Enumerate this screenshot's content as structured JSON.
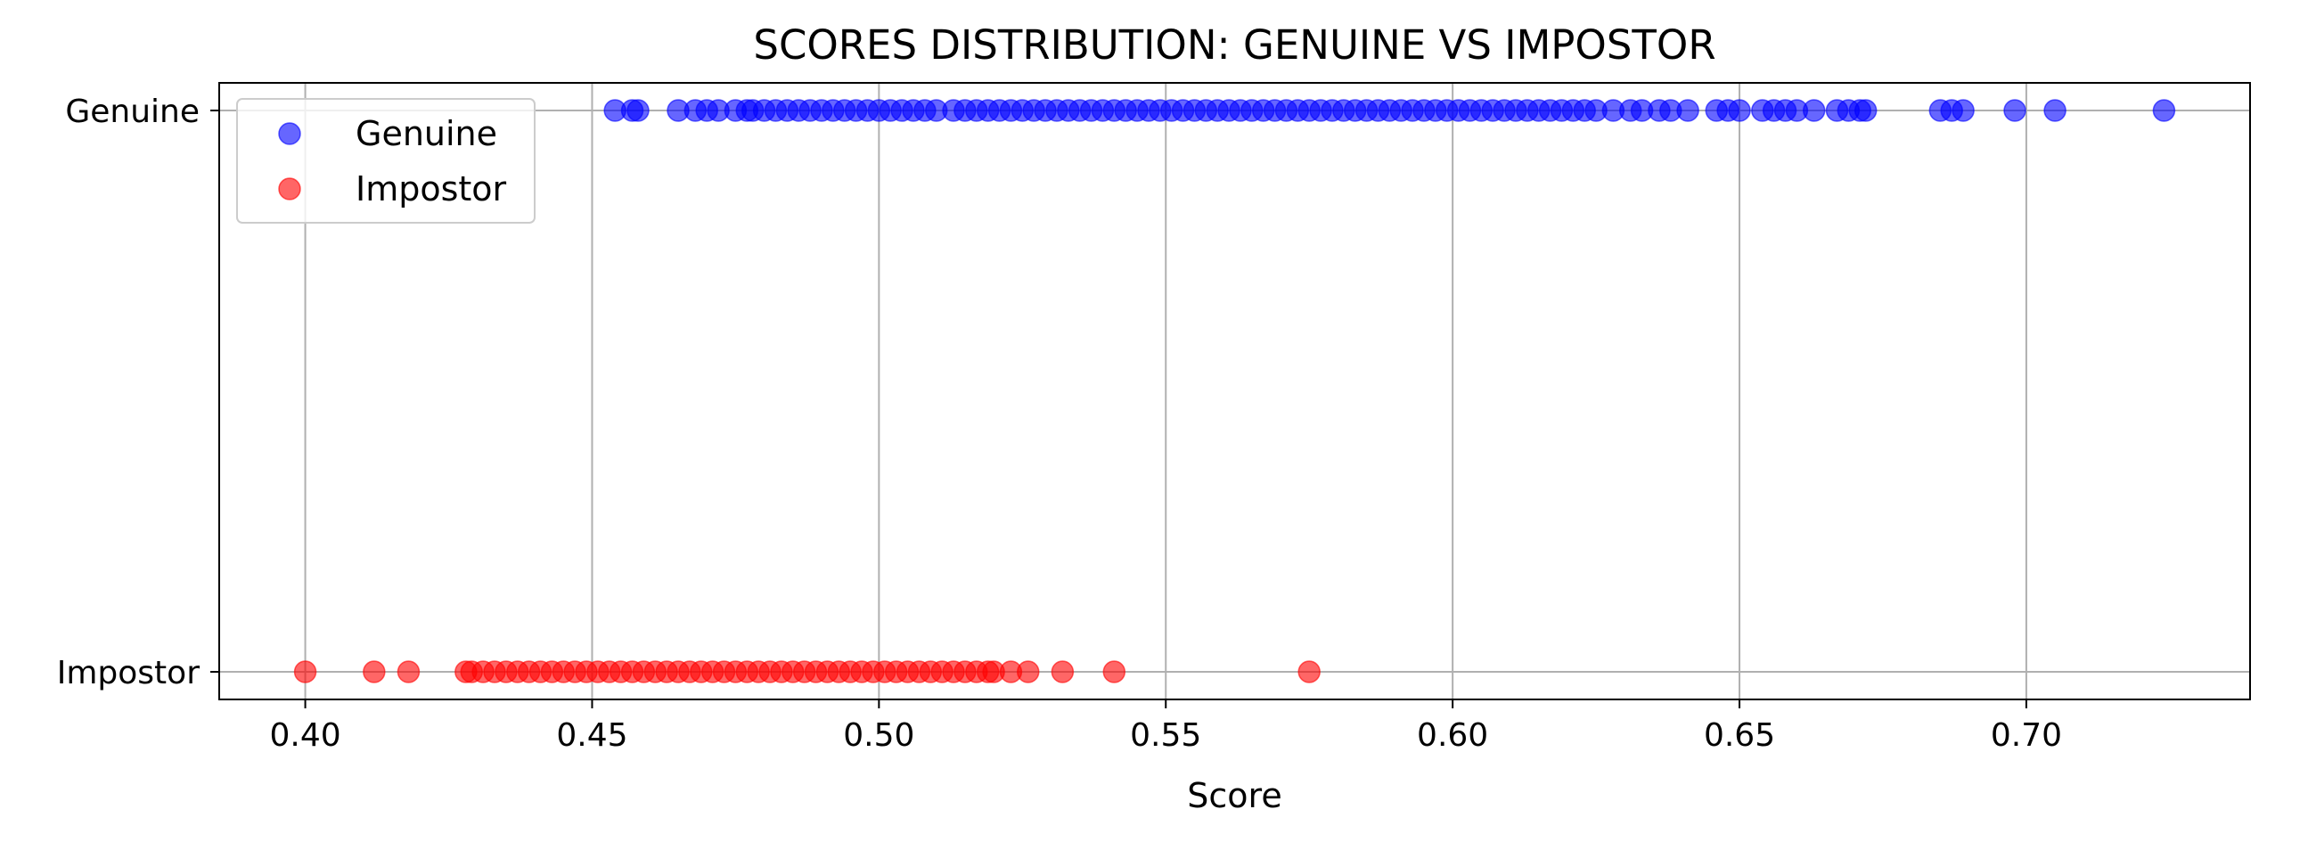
{
  "chart_data": {
    "type": "scatter",
    "title": "SCORES DISTRIBUTION: GENUINE VS IMPOSTOR",
    "xlabel": "Score",
    "ylabel": "",
    "xlim": [
      0.385,
      0.739
    ],
    "x_ticks": [
      "0.40",
      "0.45",
      "0.50",
      "0.55",
      "0.60",
      "0.65",
      "0.70"
    ],
    "y_categories": [
      "Impostor",
      "Genuine"
    ],
    "grid": true,
    "legend_position": "upper-left",
    "series": [
      {
        "name": "Genuine",
        "category": "Genuine",
        "color": "#0000ff",
        "x": [
          0.454,
          0.457,
          0.458,
          0.465,
          0.468,
          0.47,
          0.472,
          0.475,
          0.477,
          0.478,
          0.48,
          0.482,
          0.484,
          0.486,
          0.488,
          0.49,
          0.492,
          0.494,
          0.496,
          0.498,
          0.5,
          0.502,
          0.504,
          0.506,
          0.508,
          0.51,
          0.513,
          0.515,
          0.517,
          0.519,
          0.521,
          0.523,
          0.525,
          0.527,
          0.529,
          0.531,
          0.533,
          0.535,
          0.537,
          0.539,
          0.541,
          0.543,
          0.545,
          0.547,
          0.549,
          0.551,
          0.553,
          0.555,
          0.557,
          0.559,
          0.561,
          0.563,
          0.565,
          0.567,
          0.569,
          0.571,
          0.573,
          0.575,
          0.577,
          0.579,
          0.581,
          0.583,
          0.585,
          0.587,
          0.589,
          0.591,
          0.593,
          0.595,
          0.597,
          0.599,
          0.601,
          0.603,
          0.605,
          0.607,
          0.609,
          0.611,
          0.613,
          0.615,
          0.617,
          0.619,
          0.621,
          0.623,
          0.625,
          0.628,
          0.631,
          0.633,
          0.636,
          0.638,
          0.641,
          0.646,
          0.648,
          0.65,
          0.654,
          0.656,
          0.658,
          0.66,
          0.663,
          0.667,
          0.669,
          0.671,
          0.672,
          0.685,
          0.687,
          0.689,
          0.698,
          0.705,
          0.724
        ]
      },
      {
        "name": "Impostor",
        "category": "Impostor",
        "color": "#ff0000",
        "x": [
          0.4,
          0.412,
          0.418,
          0.428,
          0.429,
          0.431,
          0.433,
          0.435,
          0.437,
          0.439,
          0.441,
          0.443,
          0.445,
          0.447,
          0.449,
          0.451,
          0.453,
          0.455,
          0.457,
          0.459,
          0.461,
          0.463,
          0.465,
          0.467,
          0.469,
          0.471,
          0.473,
          0.475,
          0.477,
          0.479,
          0.481,
          0.483,
          0.485,
          0.487,
          0.489,
          0.491,
          0.493,
          0.495,
          0.497,
          0.499,
          0.501,
          0.503,
          0.505,
          0.507,
          0.509,
          0.511,
          0.513,
          0.515,
          0.517,
          0.519,
          0.52,
          0.523,
          0.526,
          0.532,
          0.541,
          0.575
        ]
      }
    ]
  }
}
